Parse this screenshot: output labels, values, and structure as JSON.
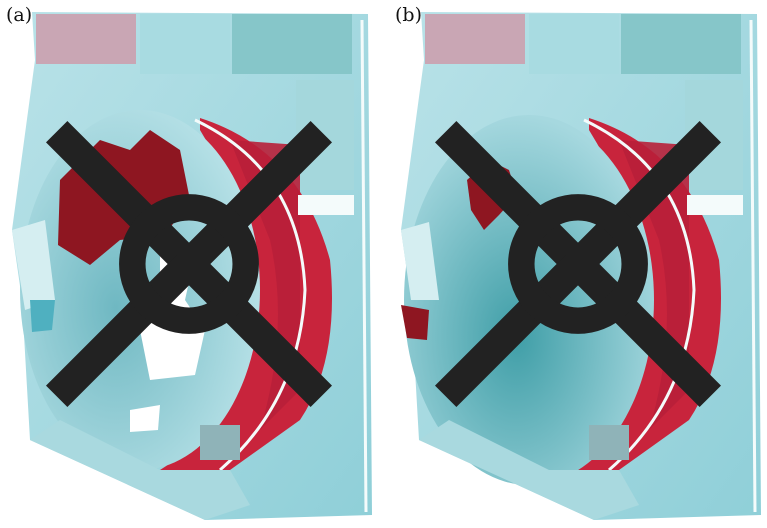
{
  "panels": [
    {
      "label": "(a)"
    },
    {
      "label": "(b)"
    }
  ],
  "colors": {
    "vegetation_red": "#c8243c",
    "dark_patch_red": "#8e1621",
    "water_cyan": "#9fd6de",
    "deep_cyan": "#3f9ea7",
    "field_pale": "#c7e6ea",
    "road_white": "#f4fbfb"
  },
  "icons": {
    "north_marker": "compass-icon"
  }
}
